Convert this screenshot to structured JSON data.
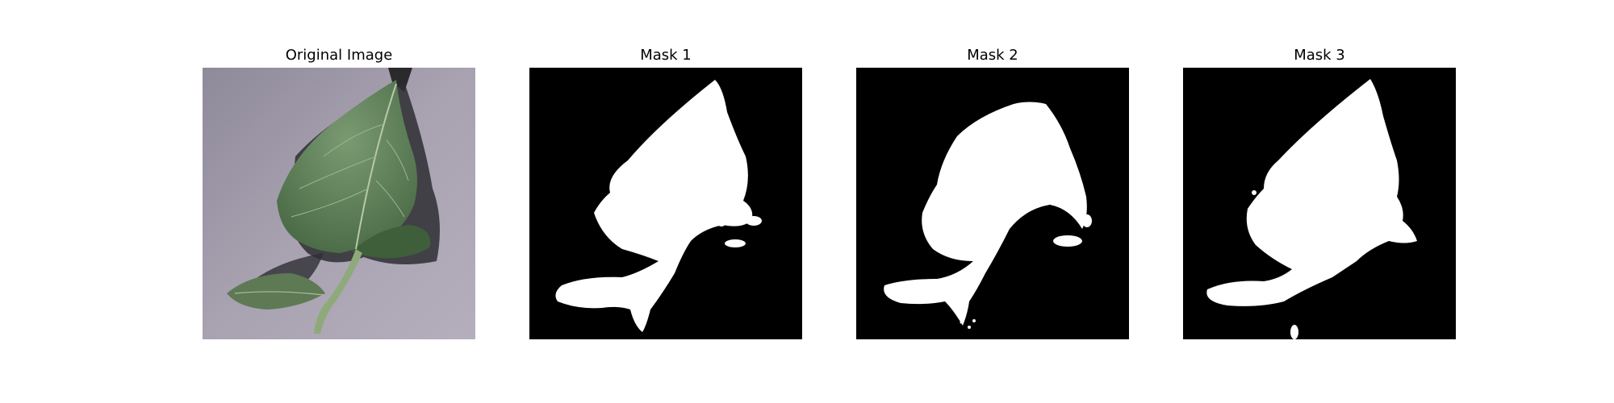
{
  "panels": [
    {
      "title": "Original Image"
    },
    {
      "title": "Mask 1"
    },
    {
      "title": "Mask 2"
    },
    {
      "title": "Mask 3"
    }
  ],
  "colors": {
    "background": "#ffffff",
    "mask_background": "#000000",
    "mask_foreground": "#ffffff",
    "photo_surface": "#a59fae",
    "leaf_green": "#5a7a52",
    "leaf_dark": "#3e5a3a",
    "shadow": "#2a2a2c"
  }
}
